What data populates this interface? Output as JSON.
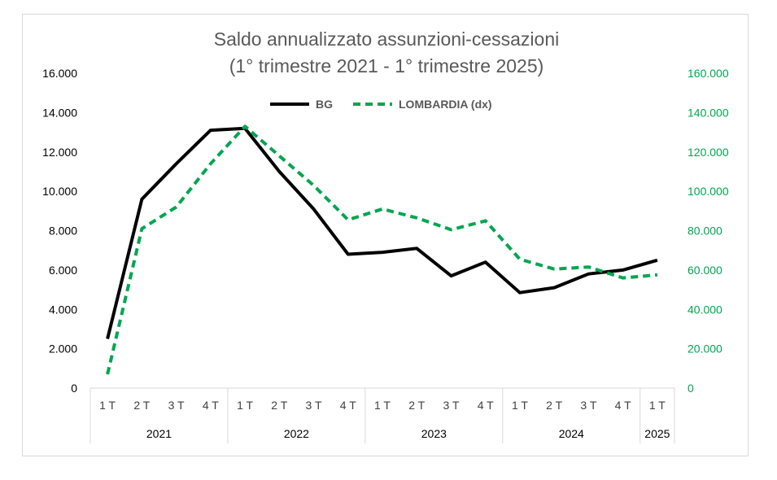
{
  "chart_data": {
    "type": "line",
    "title": "Saldo annualizzato assunzioni-cessazioni",
    "subtitle": "(1° trimestre 2021 - 1° trimestre 2025)",
    "categories": [
      "1 T",
      "2 T",
      "3 T",
      "4 T",
      "1 T",
      "2 T",
      "3 T",
      "4 T",
      "1 T",
      "2 T",
      "3 T",
      "4 T",
      "1 T",
      "2 T",
      "3 T",
      "4 T",
      "1 T"
    ],
    "years": [
      {
        "label": "2021",
        "count": 4
      },
      {
        "label": "2022",
        "count": 4
      },
      {
        "label": "2023",
        "count": 4
      },
      {
        "label": "2024",
        "count": 4
      },
      {
        "label": "2025",
        "count": 1
      }
    ],
    "left_axis": {
      "ylim": [
        0,
        16000
      ],
      "ticks": [
        "0",
        "2.000",
        "4.000",
        "6.000",
        "8.000",
        "10.000",
        "12.000",
        "14.000",
        "16.000"
      ]
    },
    "right_axis": {
      "ylim": [
        0,
        160000
      ],
      "ticks": [
        "0",
        "20.000",
        "40.000",
        "60.000",
        "80.000",
        "100.000",
        "120.000",
        "140.000",
        "160.000"
      ]
    },
    "series": [
      {
        "name": "BG",
        "axis": "left",
        "color": "#000000",
        "style": "solid",
        "values": [
          2500,
          9600,
          11400,
          13100,
          13200,
          11000,
          9100,
          6800,
          6900,
          7100,
          5700,
          6400,
          4850,
          5100,
          5800,
          6000,
          6500
        ]
      },
      {
        "name": "LOMBARDIA (dx)",
        "axis": "right",
        "color": "#00a650",
        "style": "dashed",
        "values": [
          7000,
          81000,
          92000,
          114000,
          133000,
          118000,
          103000,
          85500,
          91000,
          86500,
          80500,
          85000,
          65500,
          60500,
          61500,
          56000,
          57500
        ]
      }
    ],
    "legend": "top-center",
    "grid": false
  }
}
